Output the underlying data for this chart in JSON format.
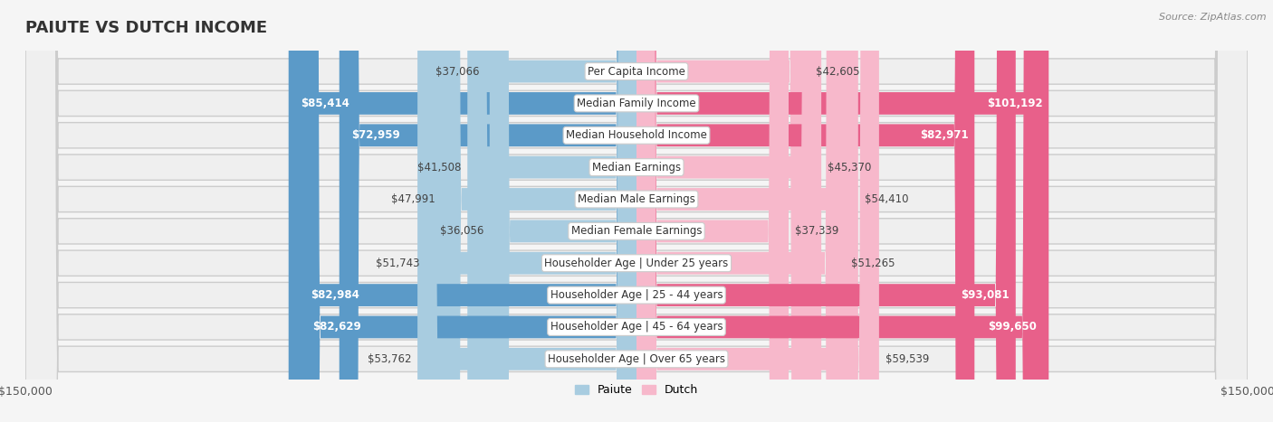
{
  "title": "PAIUTE VS DUTCH INCOME",
  "source": "Source: ZipAtlas.com",
  "categories": [
    "Per Capita Income",
    "Median Family Income",
    "Median Household Income",
    "Median Earnings",
    "Median Male Earnings",
    "Median Female Earnings",
    "Householder Age | Under 25 years",
    "Householder Age | 25 - 44 years",
    "Householder Age | 45 - 64 years",
    "Householder Age | Over 65 years"
  ],
  "paiute_values": [
    37066,
    85414,
    72959,
    41508,
    47991,
    36056,
    51743,
    82984,
    82629,
    53762
  ],
  "dutch_values": [
    42605,
    101192,
    82971,
    45370,
    54410,
    37339,
    51265,
    93081,
    99650,
    59539
  ],
  "paiute_color_light": "#a8cce0",
  "paiute_color_dark": "#5b9ac8",
  "dutch_color_light": "#f7b8cb",
  "dutch_color_dark": "#e8608a",
  "row_bg_color": "#e8e8e8",
  "row_inner_color": "#f5f5f5",
  "bg_color": "#f5f5f5",
  "max_value": 150000,
  "title_fontsize": 13,
  "label_fontsize": 8.5,
  "tick_fontsize": 9,
  "legend_fontsize": 9,
  "source_fontsize": 8,
  "paiute_threshold": 60000,
  "dutch_threshold": 60000
}
